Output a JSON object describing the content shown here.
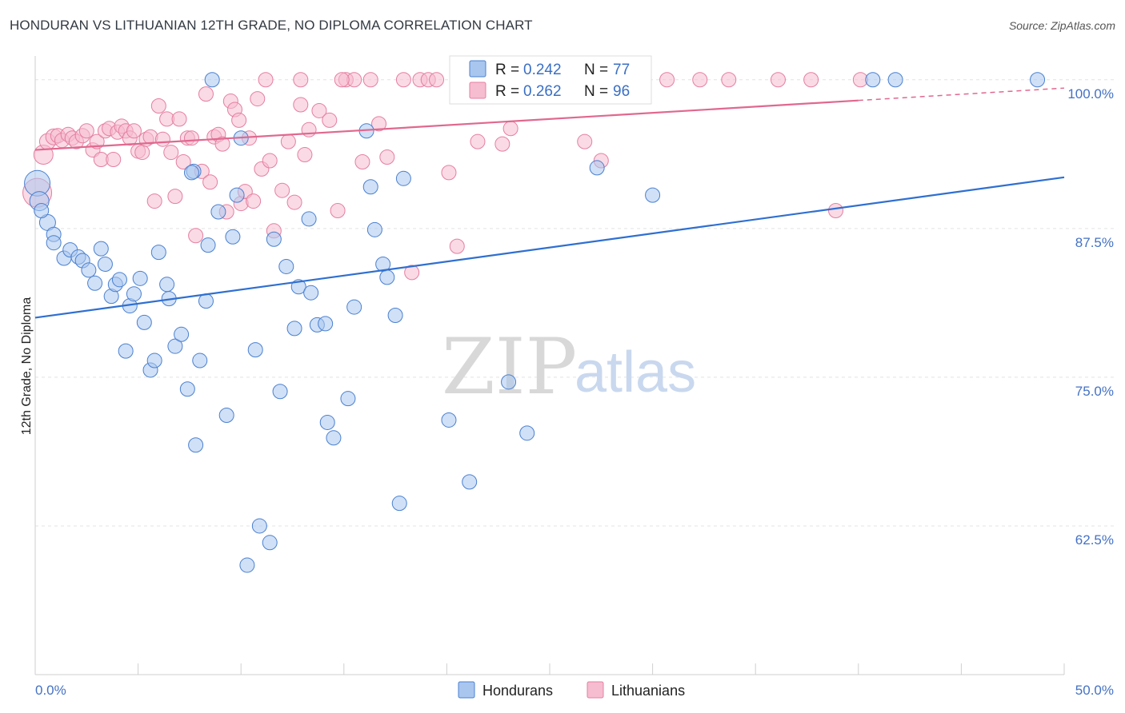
{
  "title": "HONDURAN VS LITHUANIAN 12TH GRADE, NO DIPLOMA CORRELATION CHART",
  "source": "Source: ZipAtlas.com",
  "watermark": {
    "zip": "ZIP",
    "atlas": "atlas"
  },
  "colors": {
    "blue_fill": "#a9c6ef",
    "blue_stroke": "#4a80d0",
    "blue_line": "#2f6fd0",
    "pink_fill": "#f6bcd0",
    "pink_stroke": "#e57fa0",
    "pink_line": "#e0688f",
    "grid": "#e3e3e3",
    "axis_text": "#4472c4"
  },
  "legend_top": {
    "rows": [
      {
        "r_label": "R = ",
        "r_value": "0.242",
        "n_label": "N = ",
        "n_value": "77",
        "series": "blue"
      },
      {
        "r_label": "R = ",
        "r_value": "0.262",
        "n_label": "N = ",
        "n_value": "96",
        "series": "pink"
      }
    ]
  },
  "legend_bottom": [
    "Hondurans",
    "Lithuanians"
  ],
  "chart_data": {
    "type": "scatter",
    "ylabel": "12th Grade, No Diploma",
    "xlim": [
      0,
      50
    ],
    "ylim": [
      50,
      102
    ],
    "x_tick_labels": [
      "0.0%",
      "50.0%"
    ],
    "y_ticks": [
      62.5,
      75.0,
      87.5,
      100.0
    ],
    "y_tick_labels": [
      "62.5%",
      "75.0%",
      "87.5%",
      "100.0%"
    ],
    "grid": true,
    "series": [
      {
        "name": "Hondurans",
        "color": "blue",
        "trend": {
          "x0": 0,
          "y0": 80.0,
          "x1": 50,
          "y1": 91.8,
          "dash_after": null
        },
        "points": [
          [
            0.1,
            91.3,
            16
          ],
          [
            0.2,
            89.8,
            12
          ],
          [
            0.6,
            88.0,
            10
          ],
          [
            0.9,
            87.0,
            9
          ],
          [
            0.9,
            86.3,
            9
          ],
          [
            1.4,
            85.0,
            9
          ],
          [
            1.7,
            85.7,
            9
          ],
          [
            2.1,
            85.1,
            9
          ],
          [
            2.3,
            84.8,
            9
          ],
          [
            2.6,
            84.0,
            9
          ],
          [
            2.9,
            82.9,
            9
          ],
          [
            3.2,
            85.8,
            9
          ],
          [
            3.4,
            84.5,
            9
          ],
          [
            3.7,
            81.8,
            9
          ],
          [
            3.9,
            82.8,
            9
          ],
          [
            4.1,
            83.2,
            9
          ],
          [
            4.4,
            77.2,
            9
          ],
          [
            4.6,
            81.0,
            9
          ],
          [
            4.8,
            82.0,
            9
          ],
          [
            5.1,
            83.3,
            9
          ],
          [
            5.3,
            79.6,
            9
          ],
          [
            5.6,
            75.6,
            9
          ],
          [
            5.8,
            76.4,
            9
          ],
          [
            6.0,
            85.5,
            9
          ],
          [
            6.4,
            82.8,
            9
          ],
          [
            6.5,
            81.6,
            9
          ],
          [
            6.8,
            77.6,
            9
          ],
          [
            7.1,
            78.6,
            9
          ],
          [
            7.4,
            74.0,
            9
          ],
          [
            7.7,
            92.3,
            9
          ],
          [
            7.8,
            69.3,
            9
          ],
          [
            8.0,
            76.4,
            9
          ],
          [
            8.3,
            81.4,
            9
          ],
          [
            8.4,
            86.1,
            9
          ],
          [
            8.6,
            100.0,
            9
          ],
          [
            8.9,
            88.9,
            9
          ],
          [
            9.3,
            71.8,
            9
          ],
          [
            9.6,
            86.8,
            9
          ],
          [
            9.8,
            90.3,
            9
          ],
          [
            10.0,
            95.1,
            9
          ],
          [
            10.7,
            77.3,
            9
          ],
          [
            10.9,
            62.5,
            9
          ],
          [
            11.4,
            61.1,
            9
          ],
          [
            10.3,
            59.2,
            9
          ],
          [
            11.6,
            86.6,
            9
          ],
          [
            11.9,
            73.8,
            9
          ],
          [
            12.2,
            84.3,
            9
          ],
          [
            12.6,
            79.1,
            9
          ],
          [
            12.8,
            82.6,
            9
          ],
          [
            13.3,
            88.3,
            9
          ],
          [
            13.4,
            82.1,
            9
          ],
          [
            13.7,
            79.4,
            9
          ],
          [
            14.1,
            79.5,
            9
          ],
          [
            14.2,
            71.2,
            9
          ],
          [
            14.5,
            69.9,
            9
          ],
          [
            15.2,
            73.2,
            9
          ],
          [
            15.5,
            80.9,
            9
          ],
          [
            16.1,
            95.7,
            9
          ],
          [
            16.3,
            91.0,
            9
          ],
          [
            16.5,
            87.4,
            9
          ],
          [
            16.9,
            84.5,
            9
          ],
          [
            17.1,
            83.4,
            9
          ],
          [
            17.7,
            64.4,
            9
          ],
          [
            17.5,
            80.2,
            9
          ],
          [
            17.9,
            91.7,
            9
          ],
          [
            20.1,
            71.4,
            9
          ],
          [
            21.1,
            66.2,
            9
          ],
          [
            23.0,
            74.6,
            9
          ],
          [
            23.9,
            70.3,
            9
          ],
          [
            27.1,
            100.0,
            9
          ],
          [
            27.3,
            92.6,
            9
          ],
          [
            30.0,
            90.3,
            9
          ],
          [
            40.7,
            100.0,
            9
          ],
          [
            41.8,
            100.0,
            9
          ],
          [
            48.7,
            100.0,
            9
          ],
          [
            0.3,
            89.0,
            9
          ],
          [
            7.6,
            92.2,
            9
          ]
        ]
      },
      {
        "name": "Lithuanians",
        "color": "pink",
        "trend": {
          "x0": 0,
          "y0": 94.1,
          "x1": 50,
          "y1": 99.3,
          "dash_after": 40.0
        },
        "points": [
          [
            0.1,
            90.5,
            18
          ],
          [
            0.4,
            93.7,
            12
          ],
          [
            0.6,
            94.8,
            10
          ],
          [
            0.9,
            95.2,
            10
          ],
          [
            1.1,
            95.3,
            9
          ],
          [
            1.3,
            94.9,
            9
          ],
          [
            1.6,
            95.4,
            9
          ],
          [
            1.8,
            95.1,
            9
          ],
          [
            2.0,
            94.8,
            9
          ],
          [
            2.3,
            95.3,
            9
          ],
          [
            2.5,
            95.7,
            9
          ],
          [
            2.8,
            94.1,
            9
          ],
          [
            3.0,
            94.8,
            9
          ],
          [
            3.2,
            93.3,
            9
          ],
          [
            3.4,
            95.7,
            9
          ],
          [
            3.6,
            95.9,
            9
          ],
          [
            3.8,
            93.3,
            9
          ],
          [
            4.0,
            95.6,
            9
          ],
          [
            4.2,
            96.1,
            9
          ],
          [
            4.4,
            95.7,
            9
          ],
          [
            4.6,
            95.1,
            9
          ],
          [
            4.8,
            95.7,
            9
          ],
          [
            5.0,
            94.0,
            9
          ],
          [
            5.2,
            93.9,
            9
          ],
          [
            5.4,
            95.0,
            9
          ],
          [
            5.6,
            95.2,
            9
          ],
          [
            5.8,
            89.8,
            9
          ],
          [
            6.0,
            97.8,
            9
          ],
          [
            6.2,
            95.0,
            9
          ],
          [
            6.4,
            96.7,
            9
          ],
          [
            6.6,
            93.9,
            9
          ],
          [
            6.8,
            90.2,
            9
          ],
          [
            7.0,
            96.7,
            9
          ],
          [
            7.2,
            93.1,
            9
          ],
          [
            7.4,
            95.1,
            9
          ],
          [
            7.6,
            95.1,
            9
          ],
          [
            7.8,
            86.9,
            9
          ],
          [
            8.1,
            92.3,
            9
          ],
          [
            8.3,
            98.8,
            9
          ],
          [
            8.5,
            91.4,
            9
          ],
          [
            8.7,
            95.2,
            9
          ],
          [
            8.9,
            95.4,
            9
          ],
          [
            9.1,
            94.6,
            9
          ],
          [
            9.3,
            88.9,
            9
          ],
          [
            9.5,
            98.2,
            9
          ],
          [
            9.7,
            97.5,
            9
          ],
          [
            9.9,
            96.6,
            9
          ],
          [
            10.0,
            89.6,
            9
          ],
          [
            10.2,
            90.6,
            9
          ],
          [
            10.4,
            95.1,
            9
          ],
          [
            10.6,
            89.8,
            9
          ],
          [
            10.8,
            98.4,
            9
          ],
          [
            11.0,
            92.5,
            9
          ],
          [
            11.2,
            100.0,
            9
          ],
          [
            11.4,
            93.2,
            9
          ],
          [
            11.6,
            87.3,
            9
          ],
          [
            12.0,
            90.7,
            9
          ],
          [
            12.3,
            94.8,
            9
          ],
          [
            12.6,
            89.7,
            9
          ],
          [
            12.9,
            97.9,
            9
          ],
          [
            13.1,
            93.7,
            9
          ],
          [
            13.3,
            95.8,
            9
          ],
          [
            13.8,
            97.4,
            9
          ],
          [
            14.3,
            96.6,
            9
          ],
          [
            14.7,
            89.0,
            9
          ],
          [
            15.1,
            100.0,
            9
          ],
          [
            15.5,
            100.0,
            9
          ],
          [
            15.9,
            93.1,
            9
          ],
          [
            16.3,
            100.0,
            9
          ],
          [
            16.7,
            96.3,
            9
          ],
          [
            17.1,
            93.5,
            9
          ],
          [
            17.9,
            100.0,
            9
          ],
          [
            18.3,
            83.8,
            9
          ],
          [
            18.7,
            100.0,
            9
          ],
          [
            19.1,
            100.0,
            9
          ],
          [
            19.5,
            100.0,
            9
          ],
          [
            20.1,
            92.2,
            9
          ],
          [
            20.5,
            86.0,
            9
          ],
          [
            21.1,
            100.0,
            9
          ],
          [
            21.5,
            94.8,
            9
          ],
          [
            22.1,
            100.0,
            9
          ],
          [
            22.7,
            94.6,
            9
          ],
          [
            23.1,
            95.9,
            9
          ],
          [
            23.5,
            100.0,
            9
          ],
          [
            24.3,
            100.0,
            9
          ],
          [
            26.7,
            94.8,
            9
          ],
          [
            27.5,
            93.2,
            9
          ],
          [
            30.7,
            100.0,
            9
          ],
          [
            32.3,
            100.0,
            9
          ],
          [
            33.7,
            100.0,
            9
          ],
          [
            36.1,
            100.0,
            9
          ],
          [
            37.7,
            100.0,
            9
          ],
          [
            38.9,
            89.0,
            9
          ],
          [
            40.1,
            100.0,
            9
          ],
          [
            14.9,
            100.0,
            9
          ],
          [
            12.9,
            100.0,
            9
          ]
        ]
      }
    ]
  }
}
